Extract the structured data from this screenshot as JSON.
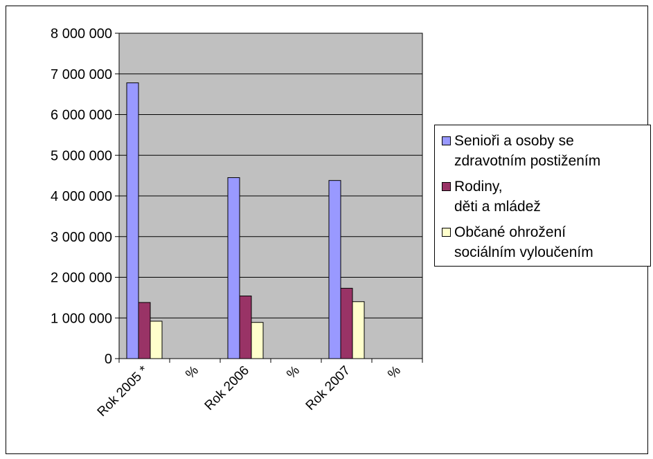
{
  "chart_data": {
    "type": "bar",
    "categories": [
      "Rok 2005 *",
      "%",
      "Rok 2006",
      "%",
      "Rok 2007",
      "%"
    ],
    "series": [
      {
        "name": "Senioři a osoby se zdravotním postižením",
        "name_lines": [
          "Senioři a osoby se",
          "zdravotním postižením"
        ],
        "color": "#9999ff",
        "values": [
          6780000,
          null,
          4450000,
          null,
          4380000,
          null
        ]
      },
      {
        "name": "Rodiny, děti a mládež",
        "name_lines": [
          "Rodiny,",
          "děti a mládež"
        ],
        "color": "#993366",
        "values": [
          1380000,
          null,
          1540000,
          null,
          1730000,
          null
        ]
      },
      {
        "name": "Občané ohrožení sociálním vyloučením",
        "name_lines": [
          "Občané ohrožení",
          "sociálním vyloučením"
        ],
        "color": "#ffffcc",
        "values": [
          920000,
          null,
          890000,
          null,
          1400000,
          null
        ]
      }
    ],
    "ylim": [
      0,
      8000000
    ],
    "yticks": [
      "0",
      "1 000 000",
      "2 000 000",
      "3 000 000",
      "4 000 000",
      "5 000 000",
      "6 000 000",
      "7 000 000",
      "8 000 000"
    ],
    "grid": true,
    "plot_background": "#c0c0c0",
    "legend_position": "right"
  }
}
